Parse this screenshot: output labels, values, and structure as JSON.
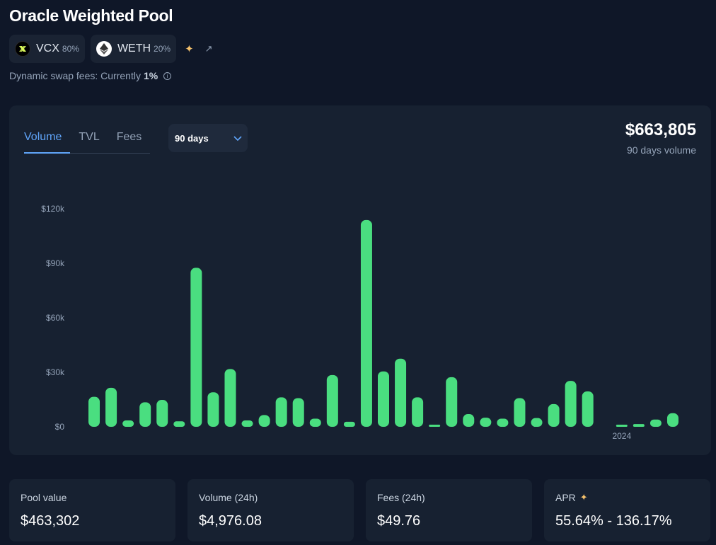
{
  "pool": {
    "title": "Oracle Weighted Pool",
    "tokens": [
      {
        "symbol": "VCX",
        "weight": "80%",
        "icon": "vcx-token-icon"
      },
      {
        "symbol": "WETH",
        "weight": "20%",
        "icon": "ethereum-token-icon"
      }
    ],
    "fees_prefix": "Dynamic swap fees: Currently",
    "fees_value": "1%"
  },
  "chart": {
    "tabs": [
      {
        "label": "Volume",
        "active": true
      },
      {
        "label": "TVL",
        "active": false
      },
      {
        "label": "Fees",
        "active": false
      }
    ],
    "period": "90 days",
    "total_value": "$663,805",
    "total_label": "90 days volume",
    "accent_color": "#4ade80",
    "tab_active_color": "#60a5fa"
  },
  "chart_data": {
    "type": "bar",
    "title": "",
    "xlabel": "",
    "ylabel": "",
    "ylim": [
      0,
      120000
    ],
    "yticks": [
      {
        "value": 0,
        "label": "$0"
      },
      {
        "value": 30000,
        "label": "$30k"
      },
      {
        "value": 60000,
        "label": "$60k"
      },
      {
        "value": 90000,
        "label": "$90k"
      },
      {
        "value": 120000,
        "label": "$120k"
      }
    ],
    "x_tick_labels": [
      {
        "label": "2024",
        "at_index": 31
      }
    ],
    "values": [
      16500,
      21500,
      3500,
      13500,
      14800,
      3000,
      87500,
      19000,
      31800,
      3500,
      6500,
      16200,
      15800,
      4500,
      28500,
      2800,
      113800,
      30500,
      37500,
      16200,
      1000,
      27300,
      7000,
      5000,
      4500,
      15800,
      4800,
      12500,
      25300,
      19500,
      0,
      500,
      1500,
      4000,
      7500
    ]
  },
  "stats": [
    {
      "label": "Pool value",
      "value": "$463,302",
      "sparkle": false
    },
    {
      "label": "Volume (24h)",
      "value": "$4,976.08",
      "sparkle": false
    },
    {
      "label": "Fees (24h)",
      "value": "$49.76",
      "sparkle": false
    },
    {
      "label": "APR",
      "value": "55.64% - 136.17%",
      "sparkle": true
    }
  ]
}
